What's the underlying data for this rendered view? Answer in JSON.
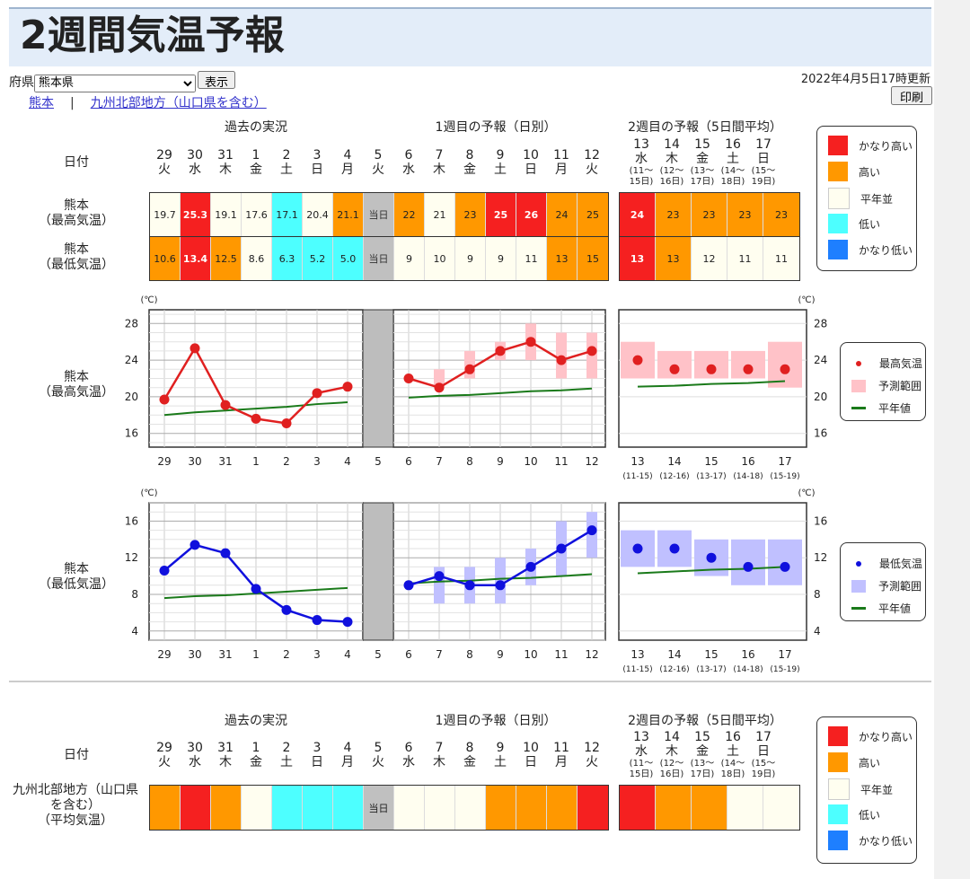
{
  "title": "2週間気温予報",
  "controls": {
    "prefecture_label": "府県",
    "prefecture_value": "熊本県",
    "show_button": "表示",
    "print_button": "印刷"
  },
  "updated": "2022年4月5日17時更新",
  "links": {
    "local": "熊本",
    "sep": "|",
    "region": "九州北部地方（山口県を含む）"
  },
  "sections": {
    "past": "過去の実況",
    "week1": "1週目の予報（日別）",
    "week2": "2週目の予報（5日間平均）"
  },
  "row_labels": {
    "date": "日付",
    "max": [
      "熊本",
      "（最高気温）"
    ],
    "min": [
      "熊本",
      "（最低気温）"
    ],
    "region_avg": [
      "九州北部地方（山口県",
      "を含む）",
      "（平均気温）"
    ]
  },
  "days": [
    {
      "d": "29",
      "w": "火"
    },
    {
      "d": "30",
      "w": "水"
    },
    {
      "d": "31",
      "w": "木"
    },
    {
      "d": "1",
      "w": "金"
    },
    {
      "d": "2",
      "w": "土"
    },
    {
      "d": "3",
      "w": "日"
    },
    {
      "d": "4",
      "w": "月"
    },
    {
      "d": "5",
      "w": "火"
    },
    {
      "d": "6",
      "w": "水"
    },
    {
      "d": "7",
      "w": "木"
    },
    {
      "d": "8",
      "w": "金"
    },
    {
      "d": "9",
      "w": "土"
    },
    {
      "d": "10",
      "w": "日"
    },
    {
      "d": "11",
      "w": "月"
    },
    {
      "d": "12",
      "w": "火"
    }
  ],
  "week2_days": [
    {
      "d": "13",
      "w": "水",
      "r1": "(11〜",
      "r2": "15日)",
      "range": "(11-15)"
    },
    {
      "d": "14",
      "w": "木",
      "r1": "(12〜",
      "r2": "16日)",
      "range": "(12-16)"
    },
    {
      "d": "15",
      "w": "金",
      "r1": "(13〜",
      "r2": "17日)",
      "range": "(13-17)"
    },
    {
      "d": "16",
      "w": "土",
      "r1": "(14〜",
      "r2": "18日)",
      "range": "(14-18)"
    },
    {
      "d": "17",
      "w": "日",
      "r1": "(15〜",
      "r2": "19日)",
      "range": "(15-19)"
    }
  ],
  "colors": {
    "very_high": "#f52020",
    "high": "#ff9800",
    "normal": "#fffef0",
    "low": "#4dffff",
    "very_low": "#1e7fff",
    "today": "#c0c0c0"
  },
  "class_legend": [
    "かなり高い",
    "高い",
    "平年並",
    "低い",
    "かなり低い"
  ],
  "today_label": "当日",
  "max_row": [
    {
      "v": "19.7",
      "c": "normal"
    },
    {
      "v": "25.3",
      "c": "very_high"
    },
    {
      "v": "19.1",
      "c": "normal"
    },
    {
      "v": "17.6",
      "c": "normal"
    },
    {
      "v": "17.1",
      "c": "low"
    },
    {
      "v": "20.4",
      "c": "normal"
    },
    {
      "v": "21.1",
      "c": "high"
    },
    {
      "v": "当日",
      "c": "today"
    },
    {
      "v": "22",
      "c": "high"
    },
    {
      "v": "21",
      "c": "normal"
    },
    {
      "v": "23",
      "c": "high"
    },
    {
      "v": "25",
      "c": "very_high"
    },
    {
      "v": "26",
      "c": "very_high"
    },
    {
      "v": "24",
      "c": "high"
    },
    {
      "v": "25",
      "c": "high"
    }
  ],
  "max_row_w2": [
    {
      "v": "24",
      "c": "very_high"
    },
    {
      "v": "23",
      "c": "high"
    },
    {
      "v": "23",
      "c": "high"
    },
    {
      "v": "23",
      "c": "high"
    },
    {
      "v": "23",
      "c": "high"
    }
  ],
  "min_row": [
    {
      "v": "10.6",
      "c": "high"
    },
    {
      "v": "13.4",
      "c": "very_high"
    },
    {
      "v": "12.5",
      "c": "high"
    },
    {
      "v": "8.6",
      "c": "normal"
    },
    {
      "v": "6.3",
      "c": "low"
    },
    {
      "v": "5.2",
      "c": "low"
    },
    {
      "v": "5.0",
      "c": "low"
    },
    {
      "v": "当日",
      "c": "today"
    },
    {
      "v": "9",
      "c": "normal"
    },
    {
      "v": "10",
      "c": "normal"
    },
    {
      "v": "9",
      "c": "normal"
    },
    {
      "v": "9",
      "c": "normal"
    },
    {
      "v": "11",
      "c": "normal"
    },
    {
      "v": "13",
      "c": "high"
    },
    {
      "v": "15",
      "c": "high"
    }
  ],
  "min_row_w2": [
    {
      "v": "13",
      "c": "very_high"
    },
    {
      "v": "13",
      "c": "high"
    },
    {
      "v": "12",
      "c": "normal"
    },
    {
      "v": "11",
      "c": "normal"
    },
    {
      "v": "11",
      "c": "normal"
    }
  ],
  "region_row": [
    "high",
    "very_high",
    "high",
    "normal",
    "low",
    "low",
    "low",
    "today",
    "normal",
    "normal",
    "normal",
    "high",
    "high",
    "high",
    "very_high"
  ],
  "region_row_w2": [
    "very_high",
    "high",
    "high",
    "normal",
    "normal"
  ],
  "unit": "(℃)",
  "chart_legend_max": [
    "最高気温",
    "予測範囲",
    "平年値"
  ],
  "chart_legend_min": [
    "最低気温",
    "予測範囲",
    "平年値"
  ],
  "chart_data": [
    {
      "type": "line",
      "title": "",
      "ylabel": "(℃)",
      "ylim": [
        14.5,
        29.5
      ],
      "yticks": [
        16,
        20,
        24,
        28
      ],
      "x": [
        "29",
        "30",
        "31",
        "1",
        "2",
        "3",
        "4",
        "5",
        "6",
        "7",
        "8",
        "9",
        "10",
        "11",
        "12"
      ],
      "series": [
        {
          "name": "最高気温",
          "values": [
            19.7,
            25.3,
            19.1,
            17.6,
            17.1,
            20.4,
            21.1,
            null,
            22,
            21,
            23,
            25,
            26,
            24,
            25
          ]
        },
        {
          "name": "予測範囲",
          "ranges": [
            null,
            null,
            null,
            null,
            null,
            null,
            null,
            null,
            [
              22,
              22
            ],
            [
              21,
              23
            ],
            [
              22,
              25
            ],
            [
              24,
              26
            ],
            [
              24,
              28
            ],
            [
              22,
              27
            ],
            [
              22,
              27
            ]
          ]
        },
        {
          "name": "平年値",
          "values": [
            18.0,
            18.3,
            18.5,
            18.7,
            18.9,
            19.2,
            19.4,
            null,
            19.9,
            20.1,
            20.2,
            20.4,
            20.6,
            20.7,
            20.9
          ]
        }
      ],
      "week2": {
        "x": [
          "13",
          "14",
          "15",
          "16",
          "17"
        ],
        "values": [
          24,
          23,
          23,
          23,
          23
        ],
        "ranges": [
          [
            22,
            26
          ],
          [
            22,
            25
          ],
          [
            22,
            25
          ],
          [
            22,
            25
          ],
          [
            21,
            26
          ]
        ],
        "normal": [
          21.1,
          21.2,
          21.4,
          21.5,
          21.7
        ]
      }
    },
    {
      "type": "line",
      "title": "",
      "ylabel": "(℃)",
      "ylim": [
        3.0,
        18.0
      ],
      "yticks": [
        4,
        8,
        12,
        16
      ],
      "x": [
        "29",
        "30",
        "31",
        "1",
        "2",
        "3",
        "4",
        "5",
        "6",
        "7",
        "8",
        "9",
        "10",
        "11",
        "12"
      ],
      "series": [
        {
          "name": "最低気温",
          "values": [
            10.6,
            13.4,
            12.5,
            8.6,
            6.3,
            5.2,
            5.0,
            null,
            9,
            10,
            9,
            9,
            11,
            13,
            15
          ]
        },
        {
          "name": "予測範囲",
          "ranges": [
            null,
            null,
            null,
            null,
            null,
            null,
            null,
            null,
            [
              9,
              9
            ],
            [
              7,
              11
            ],
            [
              7,
              11
            ],
            [
              7,
              12
            ],
            [
              9,
              13
            ],
            [
              10,
              16
            ],
            [
              12,
              17
            ]
          ]
        },
        {
          "name": "平年値",
          "values": [
            7.6,
            7.8,
            7.9,
            8.1,
            8.3,
            8.5,
            8.7,
            null,
            9.2,
            9.4,
            9.5,
            9.7,
            9.8,
            10.0,
            10.2
          ]
        }
      ],
      "week2": {
        "x": [
          "13",
          "14",
          "15",
          "16",
          "17"
        ],
        "values": [
          13,
          13,
          12,
          11,
          11
        ],
        "ranges": [
          [
            11,
            15
          ],
          [
            11,
            15
          ],
          [
            10,
            14
          ],
          [
            9,
            14
          ],
          [
            9,
            14
          ]
        ],
        "normal": [
          10.3,
          10.5,
          10.7,
          10.8,
          11.0
        ]
      }
    }
  ]
}
